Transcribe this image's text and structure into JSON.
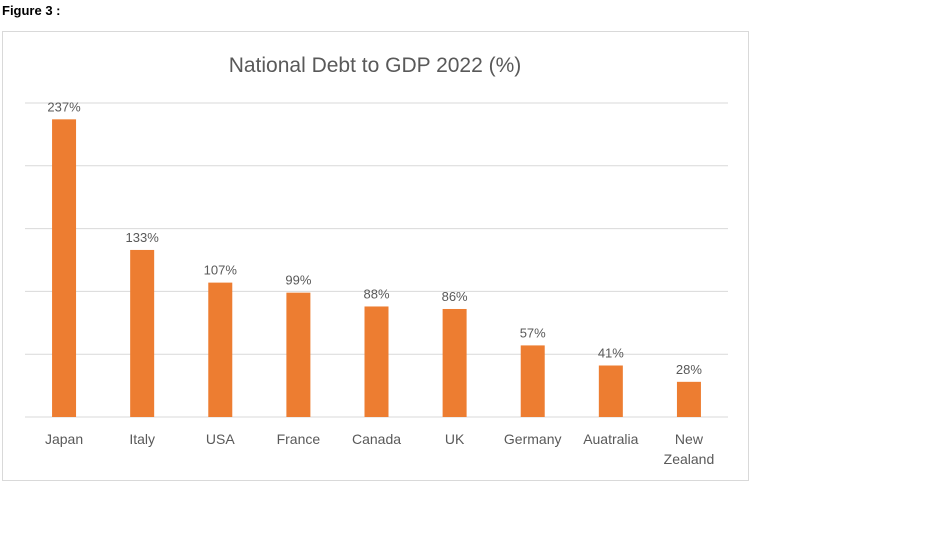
{
  "figure_label": "Figure 3 :",
  "colors": {
    "bar": "#ED7D31",
    "gridline": "#D9D9D9",
    "text": "#595959"
  },
  "chart_data": {
    "type": "bar",
    "title": "National Debt to GDP 2022 (%)",
    "xlabel": "",
    "ylabel": "",
    "ylim": [
      0,
      250
    ],
    "gridlines": [
      0,
      50,
      100,
      150,
      200,
      250
    ],
    "grid": true,
    "categories": [
      "Japan",
      "Italy",
      "USA",
      "France",
      "Canada",
      "UK",
      "Germany",
      "Auatralia",
      "New Zealand"
    ],
    "category_lines": [
      [
        "Japan"
      ],
      [
        "Italy"
      ],
      [
        "USA"
      ],
      [
        "France"
      ],
      [
        "Canada"
      ],
      [
        "UK"
      ],
      [
        "Germany"
      ],
      [
        "Auatralia"
      ],
      [
        "New",
        "Zealand"
      ]
    ],
    "values": [
      237,
      133,
      107,
      99,
      88,
      86,
      57,
      41,
      28
    ],
    "data_labels": [
      "237%",
      "133%",
      "107%",
      "99%",
      "88%",
      "86%",
      "57%",
      "41%",
      "28%"
    ]
  }
}
